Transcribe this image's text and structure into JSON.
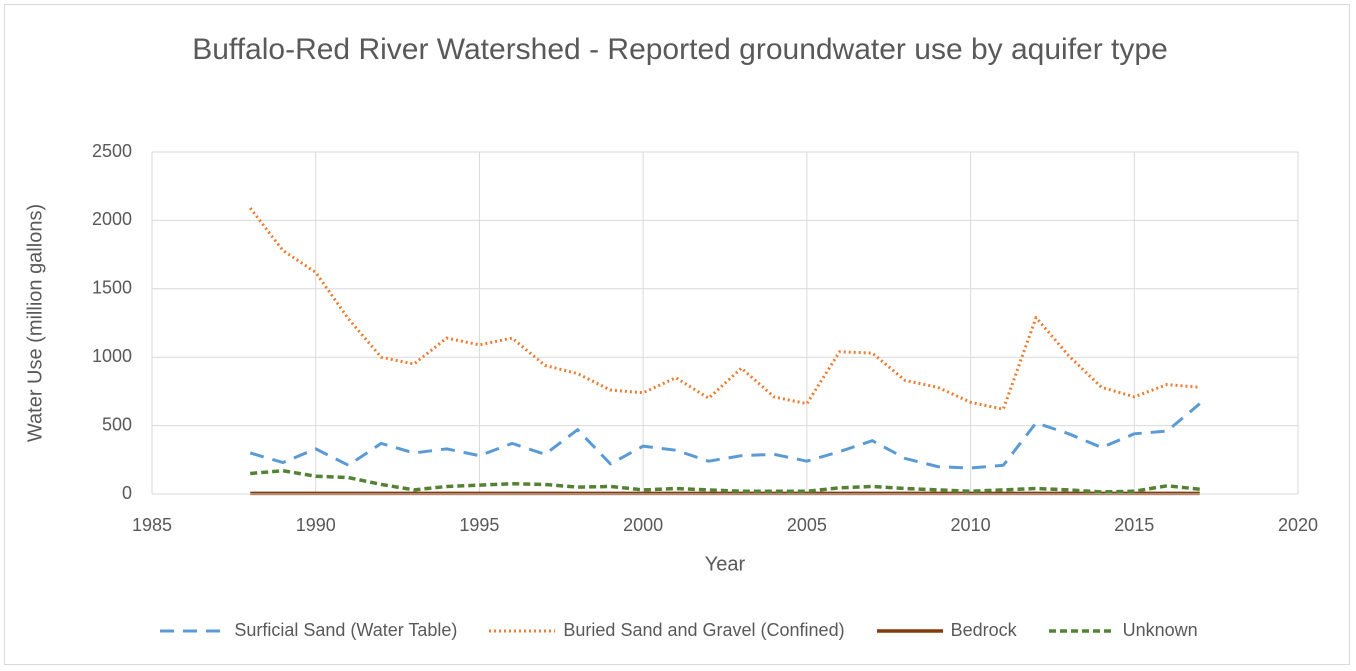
{
  "chart_data": {
    "type": "line",
    "title": "Buffalo-Red River Watershed - Reported groundwater use by aquifer type",
    "x_label": "Year",
    "y_label": "Water Use (million gallons)",
    "x": [
      1988,
      1989,
      1990,
      1991,
      1992,
      1993,
      1994,
      1995,
      1996,
      1997,
      1998,
      1999,
      2000,
      2001,
      2002,
      2003,
      2004,
      2005,
      2006,
      2007,
      2008,
      2009,
      2010,
      2011,
      2012,
      2013,
      2014,
      2015,
      2016,
      2017
    ],
    "series": [
      {
        "name": "Surficial Sand (Water Table)",
        "color": "#5b9bd5",
        "values": [
          300,
          230,
          330,
          210,
          370,
          300,
          330,
          280,
          370,
          290,
          470,
          220,
          350,
          320,
          240,
          280,
          290,
          240,
          310,
          390,
          260,
          200,
          190,
          210,
          520,
          440,
          340,
          440,
          460,
          660
        ]
      },
      {
        "name": "Buried Sand and Gravel (Confined)",
        "color": "#ed7d31",
        "values": [
          2090,
          1780,
          1620,
          1280,
          1000,
          950,
          1140,
          1090,
          1140,
          940,
          880,
          760,
          740,
          850,
          700,
          920,
          710,
          660,
          1040,
          1030,
          830,
          780,
          670,
          620,
          1290,
          1010,
          780,
          710,
          800,
          780
        ]
      },
      {
        "name": "Bedrock",
        "color": "#843c0c",
        "values": [
          5,
          5,
          5,
          5,
          5,
          5,
          5,
          5,
          5,
          5,
          5,
          5,
          5,
          5,
          5,
          5,
          5,
          5,
          5,
          5,
          5,
          5,
          5,
          5,
          5,
          5,
          5,
          5,
          5,
          5
        ]
      },
      {
        "name": "Unknown",
        "color": "#548235",
        "values": [
          150,
          170,
          130,
          120,
          70,
          30,
          55,
          65,
          75,
          70,
          50,
          55,
          30,
          40,
          30,
          20,
          20,
          20,
          45,
          55,
          40,
          30,
          20,
          30,
          40,
          30,
          15,
          20,
          60,
          35
        ]
      }
    ],
    "xlim": [
      1985,
      2020
    ],
    "xticks": [
      1985,
      1990,
      1995,
      2000,
      2005,
      2010,
      2015,
      2020
    ],
    "ylim": [
      0,
      2500
    ],
    "yticks": [
      0,
      500,
      1000,
      1500,
      2000,
      2500
    ],
    "grid": true,
    "legend": "bottom"
  }
}
